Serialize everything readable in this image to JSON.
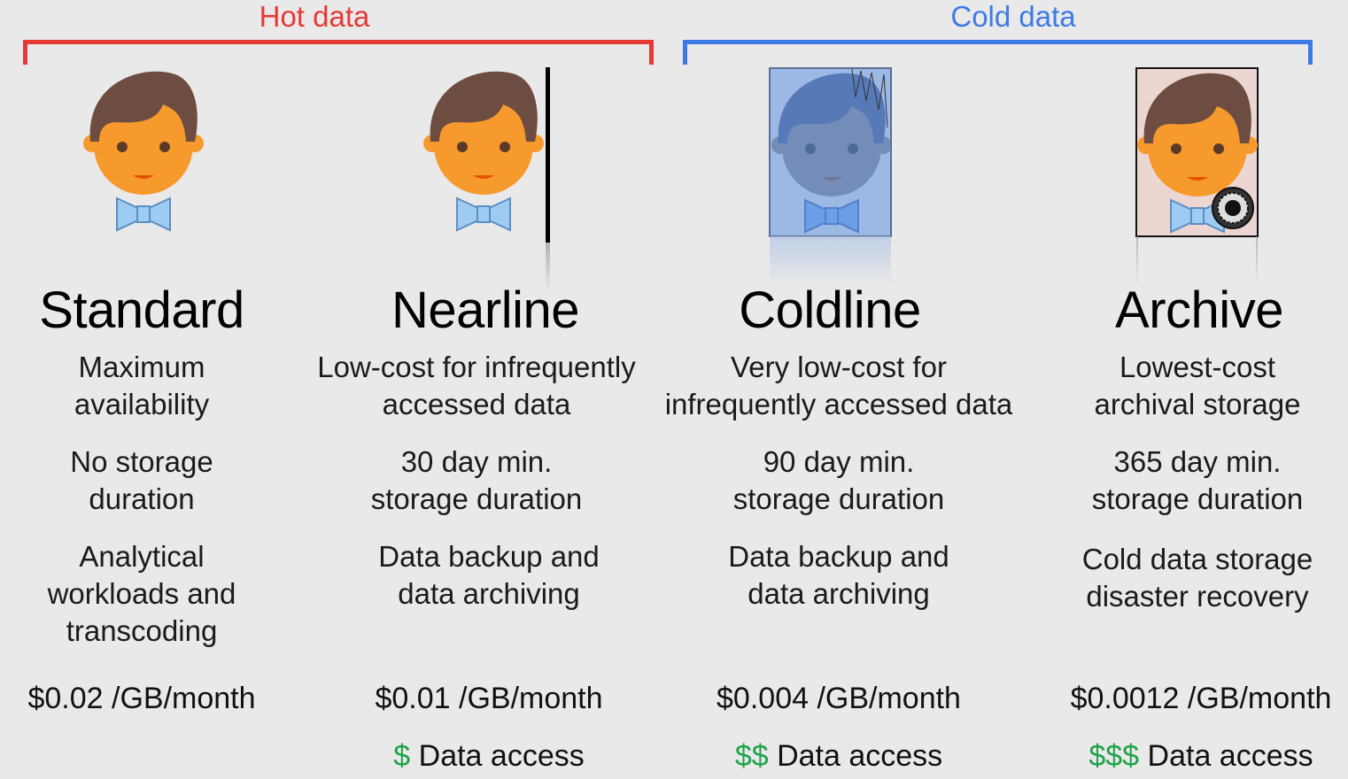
{
  "brackets": {
    "hot": {
      "label": "Hot data",
      "color": "#e53935"
    },
    "cold": {
      "label": "Cold data",
      "color": "#3d7be4"
    }
  },
  "columns": [
    {
      "title": "Standard",
      "description": [
        "Maximum",
        "availability"
      ],
      "duration": [
        "No storage",
        "duration"
      ],
      "use_case": [
        "Analytical",
        "workloads and",
        "transcoding"
      ],
      "price": "$0.02 /GB/month",
      "access_symbol": "",
      "access_label": ""
    },
    {
      "title": "Nearline",
      "description": [
        "Low-cost for infrequently",
        "accessed data"
      ],
      "duration": [
        "30 day min.",
        "storage duration"
      ],
      "use_case": [
        "Data backup and",
        "data archiving"
      ],
      "price": "$0.01 /GB/month",
      "access_symbol": "$",
      "access_label": "Data access"
    },
    {
      "title": "Coldline",
      "description": [
        "Very low-cost for",
        "infrequently accessed data"
      ],
      "duration": [
        "90 day min.",
        "storage duration"
      ],
      "use_case": [
        "Data backup and",
        "data archiving"
      ],
      "price": "$0.004 /GB/month",
      "access_symbol": "$$",
      "access_label": "Data access"
    },
    {
      "title": "Archive",
      "description": [
        "Lowest-cost",
        "archival storage"
      ],
      "duration": [
        "365 day min.",
        "storage duration"
      ],
      "use_case": [
        "Cold data storage",
        "disaster recovery"
      ],
      "price": "$0.0012 /GB/month",
      "access_symbol": "$$$",
      "access_label": "Data access"
    }
  ],
  "colors": {
    "face": "#f79a2e",
    "hair": "#6d4c41",
    "bowtie": "#9ecbf2",
    "access_green": "#1fa34a"
  },
  "icons": [
    "person-avatar-icon",
    "glass-panel-icon",
    "frosted-frame-icon",
    "vault-dial-icon"
  ]
}
